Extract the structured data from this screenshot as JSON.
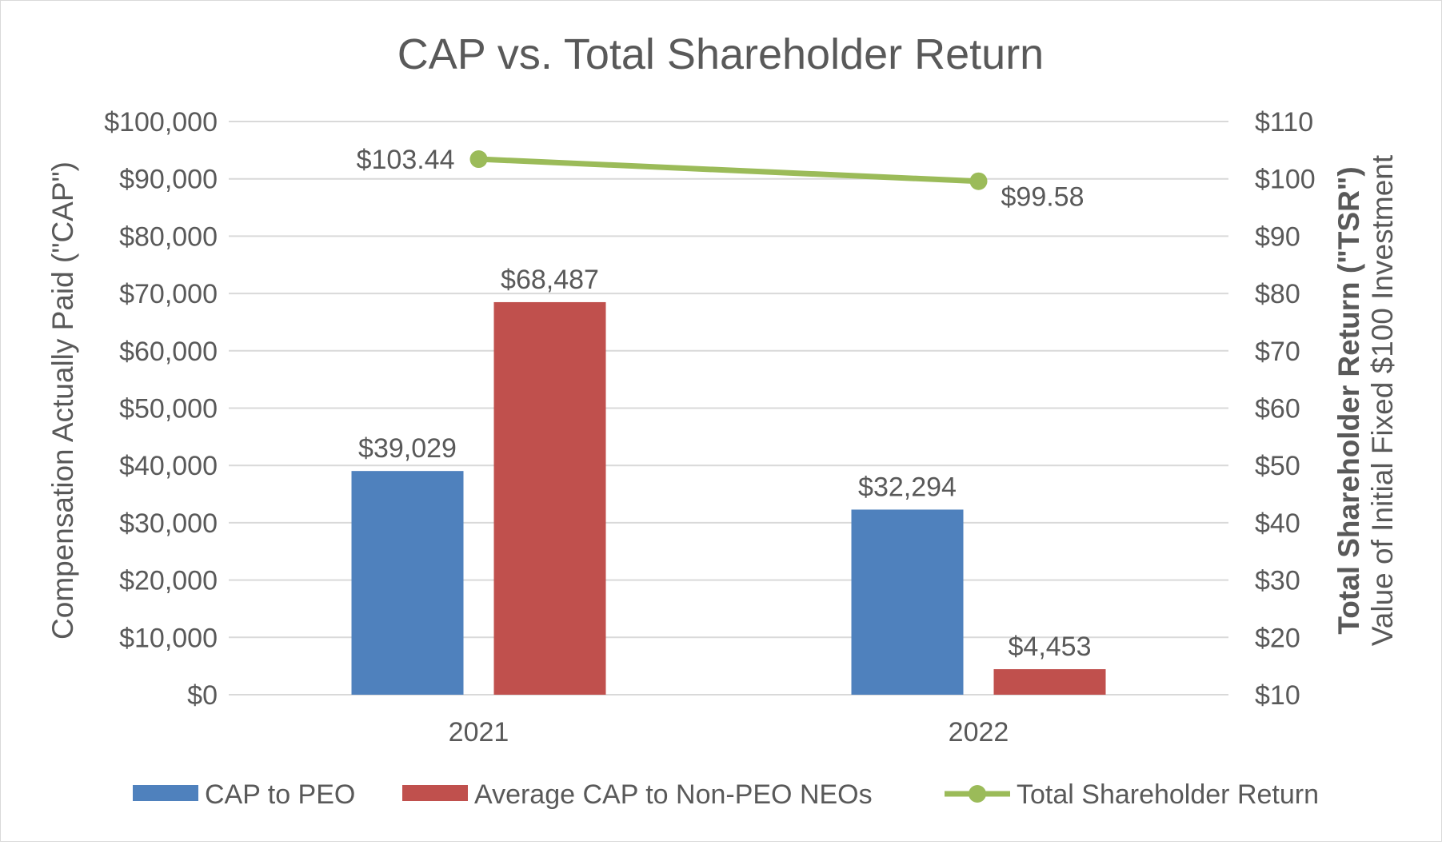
{
  "chart_data": {
    "type": "bar",
    "title": "CAP vs. Total Shareholder Return",
    "categories": [
      "2021",
      "2022"
    ],
    "series": [
      {
        "name": "CAP to PEO",
        "type": "bar",
        "axis": "left",
        "color": "#4f81bd",
        "values": [
          39029,
          32294
        ],
        "labels": [
          "$39,029",
          "$32,294"
        ]
      },
      {
        "name": "Average CAP to Non-PEO NEOs",
        "type": "bar",
        "axis": "left",
        "color": "#c0504d",
        "values": [
          68487,
          4453
        ],
        "labels": [
          "$68,487",
          "$4,453"
        ]
      },
      {
        "name": "Total Shareholder Return",
        "type": "line",
        "axis": "right",
        "color": "#9bbb59",
        "values": [
          103.44,
          99.58
        ],
        "labels": [
          "$103.44",
          "$99.58"
        ]
      }
    ],
    "y_left": {
      "label": "Compensation Actually Paid (\"CAP\")",
      "ylim": [
        0,
        100000
      ],
      "ticks": [
        0,
        10000,
        20000,
        30000,
        40000,
        50000,
        60000,
        70000,
        80000,
        90000,
        100000
      ],
      "tick_labels": [
        "$0",
        "$10,000",
        "$20,000",
        "$30,000",
        "$40,000",
        "$50,000",
        "$60,000",
        "$70,000",
        "$80,000",
        "$90,000",
        "$100,000"
      ]
    },
    "y_right": {
      "label_bold": "Total Shareholder Return (\"TSR\")",
      "label": "Value of Initial Fixed $100 Investment",
      "ylim": [
        10,
        110
      ],
      "ticks": [
        10,
        20,
        30,
        40,
        50,
        60,
        70,
        80,
        90,
        100,
        110
      ],
      "tick_labels": [
        "$10",
        "$20",
        "$30",
        "$40",
        "$50",
        "$60",
        "$70",
        "$80",
        "$90",
        "$100",
        "$110"
      ]
    },
    "grid": true,
    "legend": "bottom",
    "text_color": "#595959",
    "grid_color": "#d9d9d9"
  }
}
